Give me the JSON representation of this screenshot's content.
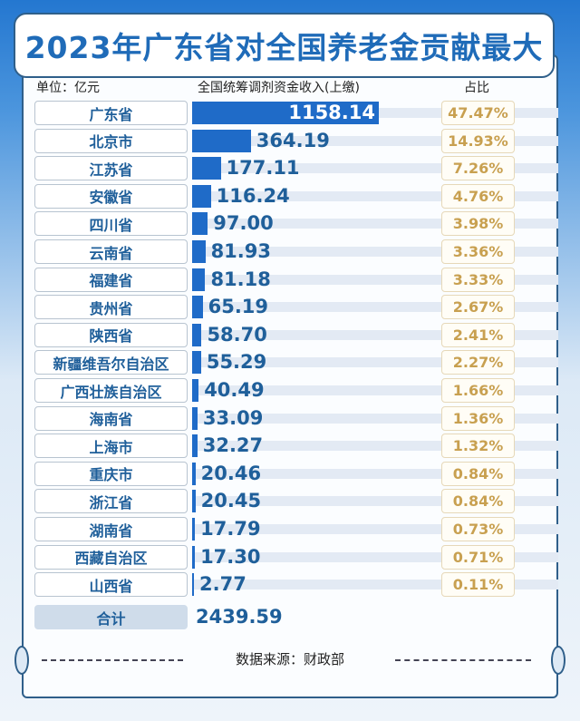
{
  "title": "2023年广东省对全国养老金贡献最大",
  "unit": "单位：亿元",
  "column_header": "全国统筹调剂资金收入(上缴)",
  "share_header": "占比",
  "total_label": "合计",
  "total_value": "2439.59",
  "source": "数据来源：财政部",
  "colors": {
    "bar": "#1f6bc8",
    "title": "#1f6bb8",
    "percent": "#c8a050"
  },
  "chart_data": {
    "type": "bar",
    "orientation": "horizontal",
    "title": "2023年广东省对全国养老金贡献最大",
    "ylabel": "全国统筹调剂资金收入(上缴)",
    "unit": "亿元",
    "categories": [
      "广东省",
      "北京市",
      "江苏省",
      "安徽省",
      "四川省",
      "云南省",
      "福建省",
      "贵州省",
      "陕西省",
      "新疆维吾尔自治区",
      "广西壮族自治区",
      "海南省",
      "上海市",
      "重庆市",
      "浙江省",
      "湖南省",
      "西藏自治区",
      "山西省"
    ],
    "values": [
      1158.14,
      364.19,
      177.11,
      116.24,
      97.0,
      81.93,
      81.18,
      65.19,
      58.7,
      55.29,
      40.49,
      33.09,
      32.27,
      20.46,
      20.45,
      17.79,
      17.3,
      2.77
    ],
    "value_labels": [
      "1158.14",
      "364.19",
      "177.11",
      "116.24",
      "97.00",
      "81.93",
      "81.18",
      "65.19",
      "58.70",
      "55.29",
      "40.49",
      "33.09",
      "32.27",
      "20.46",
      "20.45",
      "17.79",
      "17.30",
      "2.77"
    ],
    "shares": [
      "47.47%",
      "14.93%",
      "7.26%",
      "4.76%",
      "3.98%",
      "3.36%",
      "3.33%",
      "2.67%",
      "2.41%",
      "2.27%",
      "1.66%",
      "1.36%",
      "1.32%",
      "0.84%",
      "0.84%",
      "0.73%",
      "0.71%",
      "0.11%"
    ]
  }
}
